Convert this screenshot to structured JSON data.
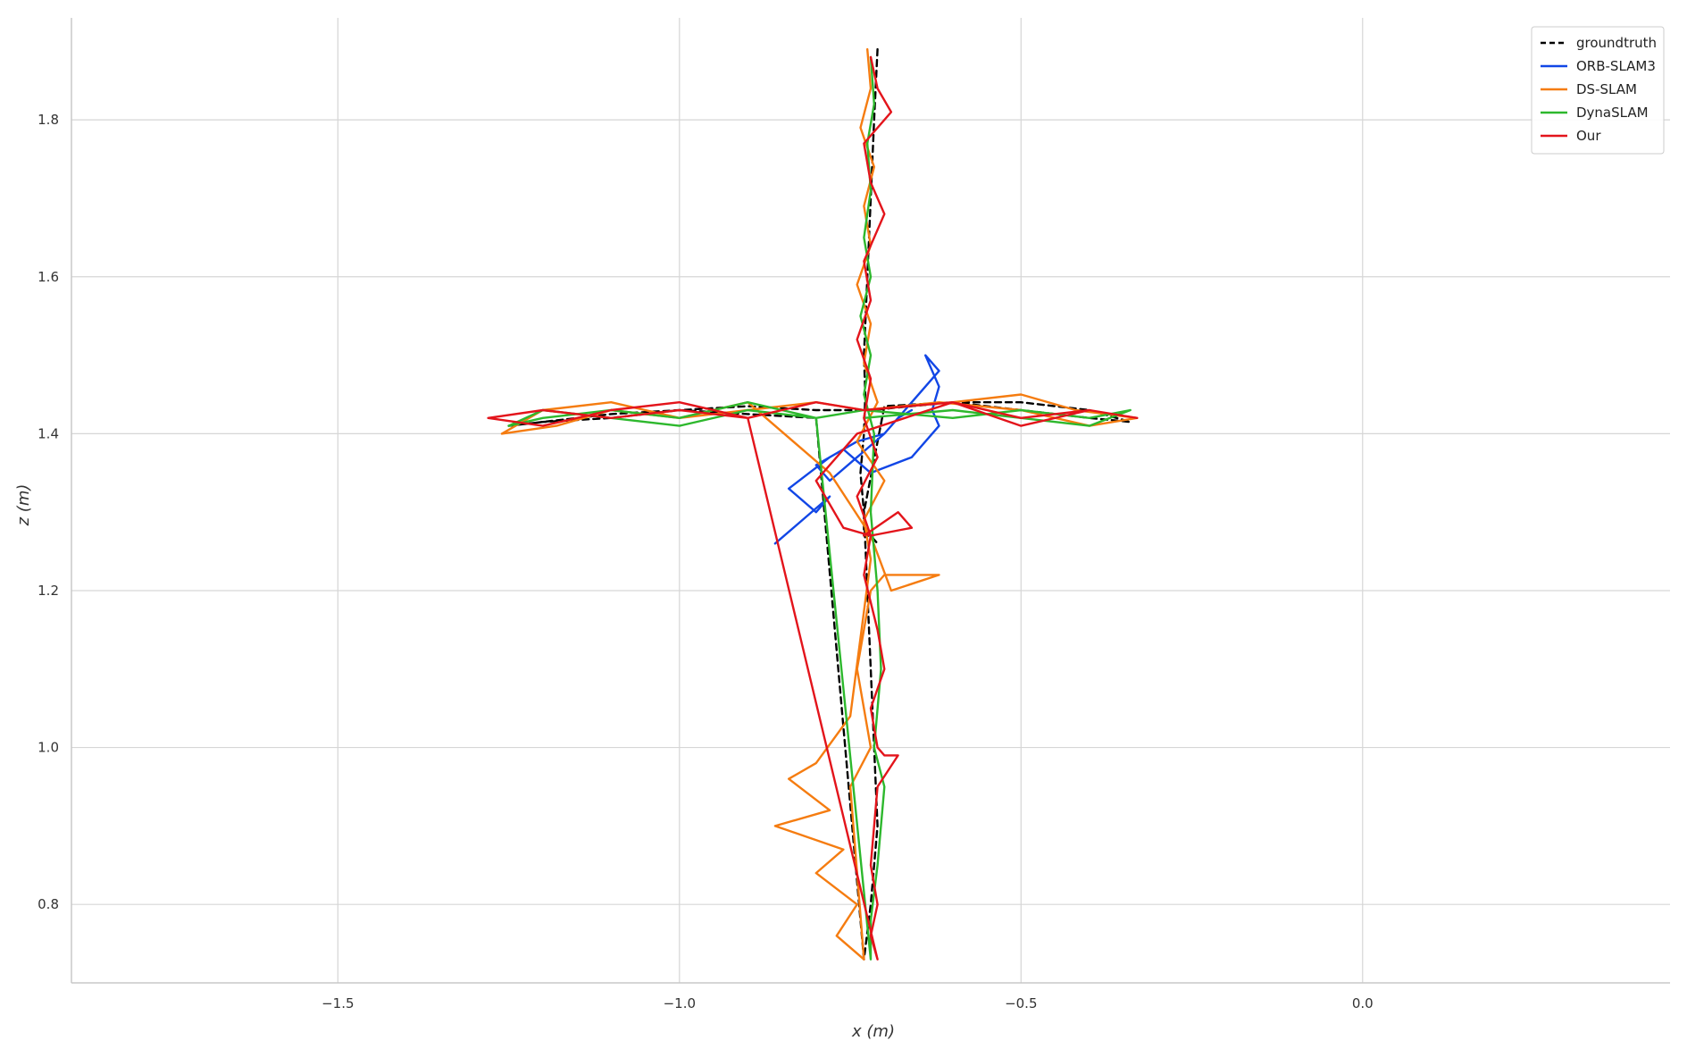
{
  "chart_data": {
    "type": "line",
    "title": "",
    "xlabel": "x (m)",
    "ylabel": "z (m)",
    "xlim": [
      -1.89,
      0.45
    ],
    "ylim": [
      0.7,
      1.93
    ],
    "xticks": [
      -1.5,
      -1.0,
      -0.5,
      0.0
    ],
    "xtick_labels": [
      "−1.5",
      "−1.0",
      "−0.5",
      "0.0"
    ],
    "yticks": [
      0.8,
      1.0,
      1.2,
      1.4,
      1.6,
      1.8
    ],
    "ytick_labels": [
      "0.8",
      "1.0",
      "1.2",
      "1.4",
      "1.6",
      "1.8"
    ],
    "grid": true,
    "legend_position": "top-right",
    "series": [
      {
        "name": "groundtruth",
        "color": "#000000",
        "dash": true,
        "x": [
          -0.71,
          -0.715,
          -0.72,
          -0.725,
          -0.73,
          -0.728,
          -0.73,
          -0.735,
          -0.73,
          -0.725,
          -0.72,
          -0.715,
          -0.71,
          -0.72,
          -0.73,
          -0.8,
          -0.9,
          -1.0,
          -1.1,
          -1.2,
          -1.25,
          -1.2,
          -1.1,
          -1.0,
          -0.9,
          -0.8,
          -0.72,
          -0.6,
          -0.5,
          -0.4,
          -0.34,
          -0.4,
          -0.5,
          -0.6,
          -0.7,
          -0.73,
          -0.73,
          -0.72,
          -0.71
        ],
        "y": [
          1.89,
          1.8,
          1.7,
          1.6,
          1.5,
          1.45,
          1.4,
          1.35,
          1.3,
          1.2,
          1.1,
          1.0,
          0.9,
          0.8,
          0.73,
          1.42,
          1.425,
          1.43,
          1.42,
          1.415,
          1.41,
          1.415,
          1.425,
          1.43,
          1.435,
          1.43,
          1.43,
          1.44,
          1.43,
          1.42,
          1.415,
          1.43,
          1.44,
          1.44,
          1.435,
          1.3,
          1.27,
          1.27,
          1.26
        ]
      },
      {
        "name": "ORB-SLAM3",
        "color": "#1146e6",
        "dash": false,
        "x": [
          -0.86,
          -0.82,
          -0.78,
          -0.8,
          -0.84,
          -0.78,
          -0.74,
          -0.7,
          -0.66,
          -0.62,
          -0.64,
          -0.62,
          -0.63,
          -0.62,
          -0.66,
          -0.72,
          -0.76,
          -0.8,
          -0.78,
          -0.74,
          -0.7,
          -0.68,
          -0.66
        ],
        "y": [
          1.26,
          1.29,
          1.32,
          1.3,
          1.33,
          1.37,
          1.39,
          1.4,
          1.44,
          1.48,
          1.5,
          1.46,
          1.43,
          1.41,
          1.37,
          1.35,
          1.38,
          1.36,
          1.34,
          1.37,
          1.4,
          1.42,
          1.43
        ]
      },
      {
        "name": "DS-SLAM",
        "color": "#f57c10",
        "dash": false,
        "x": [
          -0.725,
          -0.72,
          -0.735,
          -0.715,
          -0.73,
          -0.72,
          -0.74,
          -0.72,
          -0.73,
          -0.71,
          -0.74,
          -0.7,
          -0.73,
          -0.72,
          -0.75,
          -0.8,
          -0.84,
          -0.78,
          -0.86,
          -0.76,
          -0.8,
          -0.74,
          -0.77,
          -0.73,
          -0.75,
          -0.72,
          -0.74,
          -0.72,
          -0.7,
          -0.62,
          -0.69,
          -0.72,
          -0.78,
          -0.9,
          -1.0,
          -1.1,
          -1.18,
          -1.26,
          -1.2,
          -1.1,
          -1.0,
          -0.9,
          -0.8,
          -0.73,
          -0.6,
          -0.5,
          -0.42,
          -0.33,
          -0.4,
          -0.5,
          -0.62,
          -0.73
        ],
        "y": [
          1.89,
          1.84,
          1.79,
          1.74,
          1.69,
          1.64,
          1.59,
          1.54,
          1.49,
          1.44,
          1.39,
          1.34,
          1.29,
          1.24,
          1.04,
          0.98,
          0.96,
          0.92,
          0.9,
          0.87,
          0.84,
          0.8,
          0.76,
          0.73,
          0.95,
          1.0,
          1.1,
          1.2,
          1.22,
          1.22,
          1.2,
          1.27,
          1.35,
          1.44,
          1.42,
          1.43,
          1.41,
          1.4,
          1.43,
          1.44,
          1.42,
          1.43,
          1.44,
          1.43,
          1.44,
          1.45,
          1.43,
          1.42,
          1.41,
          1.43,
          1.44,
          1.43
        ]
      },
      {
        "name": "DynaSLAM",
        "color": "#2db82d",
        "dash": false,
        "x": [
          -0.72,
          -0.715,
          -0.725,
          -0.72,
          -0.73,
          -0.72,
          -0.735,
          -0.72,
          -0.73,
          -0.715,
          -0.72,
          -0.71,
          -0.705,
          -0.715,
          -0.7,
          -0.71,
          -0.72,
          -0.72,
          -0.8,
          -0.9,
          -1.0,
          -1.1,
          -1.2,
          -1.25,
          -1.2,
          -1.1,
          -1.0,
          -0.9,
          -0.8,
          -0.73,
          -0.6,
          -0.5,
          -0.4,
          -0.34,
          -0.4,
          -0.5,
          -0.6,
          -0.73
        ],
        "y": [
          1.88,
          1.82,
          1.77,
          1.71,
          1.65,
          1.6,
          1.55,
          1.5,
          1.45,
          1.4,
          1.3,
          1.2,
          1.1,
          1.0,
          0.95,
          0.85,
          0.78,
          0.73,
          1.42,
          1.43,
          1.41,
          1.42,
          1.43,
          1.41,
          1.42,
          1.43,
          1.42,
          1.44,
          1.42,
          1.43,
          1.42,
          1.43,
          1.42,
          1.43,
          1.41,
          1.42,
          1.43,
          1.42
        ]
      },
      {
        "name": "Our",
        "color": "#e3141b",
        "dash": false,
        "x": [
          -0.72,
          -0.71,
          -0.69,
          -0.73,
          -0.72,
          -0.7,
          -0.73,
          -0.72,
          -0.74,
          -0.72,
          -0.73,
          -0.71,
          -0.74,
          -0.72,
          -0.73,
          -0.71,
          -0.7,
          -0.72,
          -0.71,
          -0.7,
          -0.68,
          -0.71,
          -0.72,
          -0.71,
          -0.72,
          -0.71,
          -0.9,
          -1.0,
          -1.1,
          -1.2,
          -1.28,
          -1.2,
          -1.1,
          -1.0,
          -0.9,
          -0.8,
          -0.73,
          -0.6,
          -0.5,
          -0.4,
          -0.33,
          -0.4,
          -0.5,
          -0.6,
          -0.74,
          -0.8,
          -0.76,
          -0.72,
          -0.66,
          -0.68,
          -0.73
        ],
        "y": [
          1.88,
          1.84,
          1.81,
          1.77,
          1.72,
          1.68,
          1.62,
          1.57,
          1.52,
          1.47,
          1.42,
          1.37,
          1.32,
          1.27,
          1.22,
          1.15,
          1.1,
          1.05,
          1.0,
          0.99,
          0.99,
          0.95,
          0.85,
          0.8,
          0.76,
          0.73,
          1.42,
          1.43,
          1.42,
          1.43,
          1.42,
          1.41,
          1.43,
          1.44,
          1.42,
          1.44,
          1.43,
          1.44,
          1.42,
          1.43,
          1.42,
          1.43,
          1.41,
          1.44,
          1.4,
          1.34,
          1.28,
          1.27,
          1.28,
          1.3,
          1.27
        ]
      }
    ]
  }
}
